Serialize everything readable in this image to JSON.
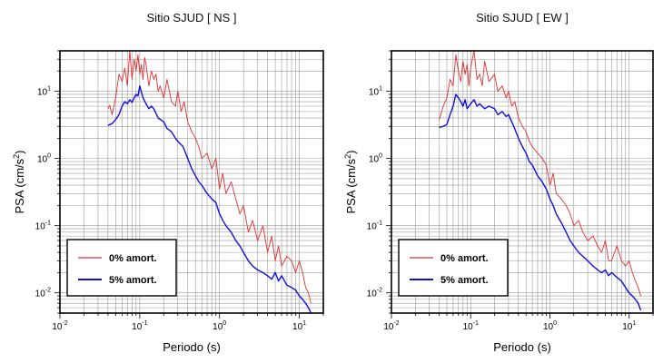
{
  "chart_data": [
    {
      "type": "line",
      "title": "Sitio SJUD [ NS ]",
      "xlabel": "Periodo (s)",
      "ylabel_main": "PSA (cm/s",
      "ylabel_exp": "2",
      "ylabel_close": ")",
      "xscale": "log",
      "yscale": "log",
      "xlim": [
        0.01,
        20
      ],
      "ylim": [
        0.005,
        40
      ],
      "grid": true,
      "legend_position": "bottom-left",
      "x_ticks": [
        {
          "base": "10",
          "exp": "-2"
        },
        {
          "base": "10",
          "exp": "-1"
        },
        {
          "base": "10",
          "exp": "0"
        },
        {
          "base": "10",
          "exp": "1"
        }
      ],
      "y_ticks": [
        {
          "base": "10",
          "exp": "-2"
        },
        {
          "base": "10",
          "exp": "-1"
        },
        {
          "base": "10",
          "exp": "0"
        },
        {
          "base": "10",
          "exp": "1"
        }
      ],
      "series": [
        {
          "name": "0% amort.",
          "color": "#e03030",
          "x": [
            0.04,
            0.042,
            0.045,
            0.05,
            0.055,
            0.06,
            0.065,
            0.07,
            0.075,
            0.08,
            0.085,
            0.09,
            0.095,
            0.1,
            0.105,
            0.11,
            0.115,
            0.12,
            0.13,
            0.14,
            0.15,
            0.16,
            0.17,
            0.18,
            0.2,
            0.22,
            0.25,
            0.28,
            0.3,
            0.33,
            0.36,
            0.4,
            0.45,
            0.5,
            0.55,
            0.6,
            0.7,
            0.8,
            0.9,
            1.0,
            1.1,
            1.2,
            1.4,
            1.6,
            1.8,
            2.0,
            2.3,
            2.6,
            3.0,
            3.5,
            4.0,
            4.5,
            5.0,
            5.5,
            6.0,
            7.0,
            8.0,
            9.0,
            10.0,
            11.0,
            12.0,
            13.0,
            14.0
          ],
          "values": [
            5.5,
            6.2,
            4.5,
            8.0,
            18.0,
            14.0,
            22.0,
            12.0,
            40.0,
            15.0,
            30.0,
            20.0,
            35.0,
            18.0,
            25.0,
            15.0,
            32.0,
            25.0,
            12.0,
            20.0,
            15.0,
            18.0,
            10.0,
            12.0,
            8.0,
            15.0,
            7.0,
            6.0,
            10.0,
            5.0,
            7.0,
            3.5,
            2.5,
            2.0,
            1.5,
            1.0,
            1.2,
            0.7,
            1.0,
            0.35,
            0.6,
            0.3,
            0.45,
            0.25,
            0.15,
            0.2,
            0.08,
            0.12,
            0.06,
            0.1,
            0.04,
            0.07,
            0.03,
            0.05,
            0.025,
            0.035,
            0.03,
            0.02,
            0.03,
            0.02,
            0.012,
            0.01,
            0.007
          ]
        },
        {
          "name": "5% amort.",
          "color": "#1010e0",
          "x": [
            0.04,
            0.045,
            0.05,
            0.055,
            0.06,
            0.065,
            0.07,
            0.075,
            0.08,
            0.085,
            0.09,
            0.095,
            0.1,
            0.11,
            0.12,
            0.13,
            0.14,
            0.15,
            0.17,
            0.2,
            0.22,
            0.25,
            0.28,
            0.3,
            0.35,
            0.4,
            0.45,
            0.5,
            0.55,
            0.6,
            0.7,
            0.8,
            0.9,
            1.0,
            1.1,
            1.2,
            1.4,
            1.6,
            1.8,
            2.0,
            2.3,
            2.6,
            3.0,
            3.5,
            4.0,
            4.5,
            5.0,
            5.5,
            6.0,
            7.0,
            8.0,
            9.0,
            10.0,
            11.0,
            12.0,
            13.0,
            14.0
          ],
          "values": [
            3.1,
            3.3,
            3.8,
            4.5,
            6.0,
            7.0,
            6.5,
            7.5,
            6.8,
            8.0,
            9.0,
            8.5,
            12.0,
            8.0,
            6.5,
            5.5,
            6.0,
            5.5,
            4.0,
            3.5,
            2.8,
            2.5,
            2.0,
            1.8,
            1.5,
            1.0,
            0.7,
            0.55,
            0.45,
            0.4,
            0.3,
            0.25,
            0.22,
            0.15,
            0.12,
            0.1,
            0.08,
            0.06,
            0.05,
            0.04,
            0.03,
            0.025,
            0.022,
            0.02,
            0.018,
            0.016,
            0.02,
            0.015,
            0.018,
            0.013,
            0.012,
            0.011,
            0.009,
            0.008,
            0.007,
            0.006,
            0.005
          ]
        }
      ]
    },
    {
      "type": "line",
      "title": "Sitio SJUD [ EW ]",
      "xlabel": "Periodo (s)",
      "ylabel_main": "PSA (cm/s",
      "ylabel_exp": "2",
      "ylabel_close": ")",
      "xscale": "log",
      "yscale": "log",
      "xlim": [
        0.01,
        20
      ],
      "ylim": [
        0.005,
        40
      ],
      "grid": true,
      "legend_position": "bottom-left",
      "x_ticks": [
        {
          "base": "10",
          "exp": "-2"
        },
        {
          "base": "10",
          "exp": "-1"
        },
        {
          "base": "10",
          "exp": "0"
        },
        {
          "base": "10",
          "exp": "1"
        }
      ],
      "y_ticks": [
        {
          "base": "10",
          "exp": "-2"
        },
        {
          "base": "10",
          "exp": "-1"
        },
        {
          "base": "10",
          "exp": "0"
        },
        {
          "base": "10",
          "exp": "1"
        }
      ],
      "series": [
        {
          "name": "0% amort.",
          "color": "#e03030",
          "x": [
            0.04,
            0.042,
            0.045,
            0.05,
            0.055,
            0.06,
            0.065,
            0.07,
            0.075,
            0.08,
            0.085,
            0.09,
            0.095,
            0.1,
            0.11,
            0.12,
            0.13,
            0.14,
            0.15,
            0.17,
            0.2,
            0.22,
            0.25,
            0.28,
            0.3,
            0.33,
            0.36,
            0.4,
            0.45,
            0.5,
            0.55,
            0.6,
            0.7,
            0.8,
            0.9,
            1.0,
            1.1,
            1.2,
            1.4,
            1.6,
            1.8,
            2.0,
            2.3,
            2.6,
            3.0,
            3.5,
            4.0,
            4.5,
            5.0,
            5.5,
            6.0,
            7.0,
            8.0,
            9.0,
            10.0,
            11.0,
            12.0,
            13.0,
            14.0
          ],
          "values": [
            3.8,
            4.5,
            6.0,
            8.0,
            15.0,
            12.0,
            35.0,
            20.0,
            14.0,
            28.0,
            18.0,
            25.0,
            12.0,
            22.0,
            40.0,
            15.0,
            18.0,
            12.0,
            28.0,
            14.0,
            18.0,
            10.0,
            12.0,
            8.0,
            10.0,
            6.0,
            7.0,
            4.0,
            3.0,
            2.5,
            1.8,
            1.5,
            1.2,
            1.0,
            0.8,
            0.4,
            0.6,
            0.3,
            0.25,
            0.2,
            0.15,
            0.1,
            0.12,
            0.08,
            0.06,
            0.07,
            0.05,
            0.04,
            0.06,
            0.03,
            0.03,
            0.05,
            0.03,
            0.025,
            0.03,
            0.02,
            0.015,
            0.012,
            0.009
          ]
        },
        {
          "name": "5% amort.",
          "color": "#1010e0",
          "x": [
            0.04,
            0.045,
            0.05,
            0.055,
            0.06,
            0.065,
            0.07,
            0.075,
            0.08,
            0.085,
            0.09,
            0.1,
            0.11,
            0.12,
            0.13,
            0.15,
            0.17,
            0.2,
            0.22,
            0.25,
            0.28,
            0.3,
            0.35,
            0.4,
            0.45,
            0.5,
            0.55,
            0.6,
            0.7,
            0.8,
            0.9,
            1.0,
            1.1,
            1.2,
            1.4,
            1.6,
            1.8,
            2.0,
            2.3,
            2.6,
            3.0,
            3.5,
            4.0,
            4.5,
            5.0,
            5.5,
            6.0,
            7.0,
            8.0,
            9.0,
            10.0,
            11.0,
            12.0,
            13.0,
            14.0
          ],
          "values": [
            2.9,
            3.0,
            3.2,
            4.5,
            6.0,
            9.0,
            8.0,
            7.0,
            6.0,
            7.5,
            5.5,
            6.5,
            7.5,
            6.0,
            6.5,
            5.5,
            6.0,
            5.5,
            4.5,
            5.0,
            4.2,
            4.5,
            3.0,
            2.0,
            1.5,
            1.2,
            0.9,
            0.8,
            0.55,
            0.45,
            0.35,
            0.25,
            0.2,
            0.15,
            0.11,
            0.08,
            0.06,
            0.05,
            0.04,
            0.035,
            0.03,
            0.025,
            0.022,
            0.02,
            0.022,
            0.018,
            0.02,
            0.017,
            0.015,
            0.012,
            0.01,
            0.009,
            0.008,
            0.007,
            0.0055
          ]
        }
      ]
    }
  ]
}
